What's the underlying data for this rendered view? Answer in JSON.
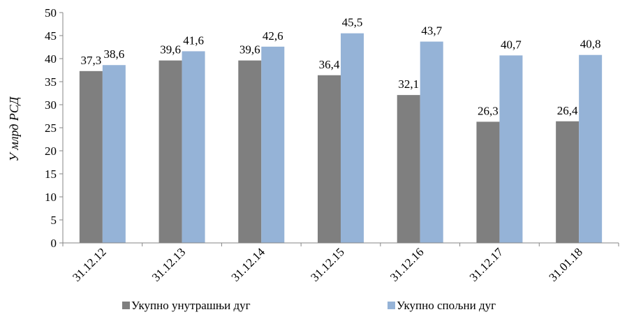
{
  "chart_data": {
    "type": "bar",
    "categories": [
      "31.12.12",
      "31.12.13",
      "31.12.14",
      "31.12.15",
      "31.12.16",
      "31.12.17",
      "31.01.18"
    ],
    "series": [
      {
        "name": "Укупно унутрашњи дуг",
        "values": [
          37.3,
          39.6,
          39.6,
          36.4,
          32.1,
          26.3,
          26.4
        ],
        "labels": [
          "37,3",
          "39,6",
          "39,6",
          "36,4",
          "32,1",
          "26,3",
          "26,4"
        ],
        "color": "#7f7f7f"
      },
      {
        "name": "Укупно спољни дуг",
        "values": [
          38.6,
          41.6,
          42.6,
          45.5,
          43.7,
          40.7,
          40.8
        ],
        "labels": [
          "38,6",
          "41,6",
          "42,6",
          "45,5",
          "43,7",
          "40,7",
          "40,8"
        ],
        "color": "#95b3d7"
      }
    ],
    "xlabel": "",
    "ylabel": "У млрд РСД",
    "ylim": [
      0,
      50
    ],
    "yticks": [
      0,
      5,
      10,
      15,
      20,
      25,
      30,
      35,
      40,
      45,
      50
    ],
    "grid": false,
    "legend_position": "bottom"
  }
}
